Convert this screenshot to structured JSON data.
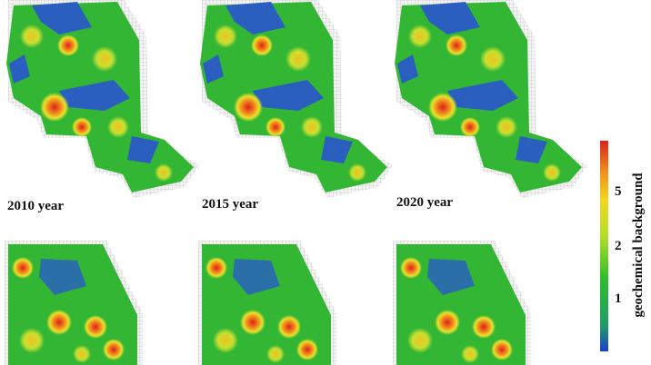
{
  "panels": [
    {
      "label": "2010 year"
    },
    {
      "label": "2015 year"
    },
    {
      "label": "2020 year"
    }
  ],
  "colorbar": {
    "title": "geochemical background",
    "ticks": [
      5,
      2,
      1
    ]
  }
}
